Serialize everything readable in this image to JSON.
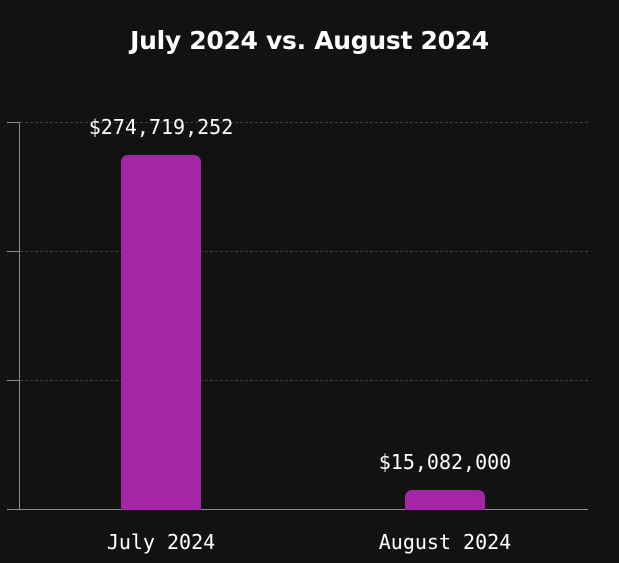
{
  "chart_data": {
    "type": "bar",
    "title": "July 2024 vs. August 2024",
    "categories": [
      "July 2024",
      "August 2024"
    ],
    "values": [
      274719252,
      15082000
    ],
    "data_labels": [
      "$274,719,252",
      "$15,082,000"
    ],
    "xlabel": "",
    "ylabel": "",
    "ylim": [
      0,
      300000000
    ],
    "y_ticks": [
      0,
      100000000,
      200000000,
      300000000
    ],
    "y_tick_labels_visible": false,
    "grid": true,
    "legend": null,
    "bar_color": "#a326a6",
    "background": "#121212"
  }
}
